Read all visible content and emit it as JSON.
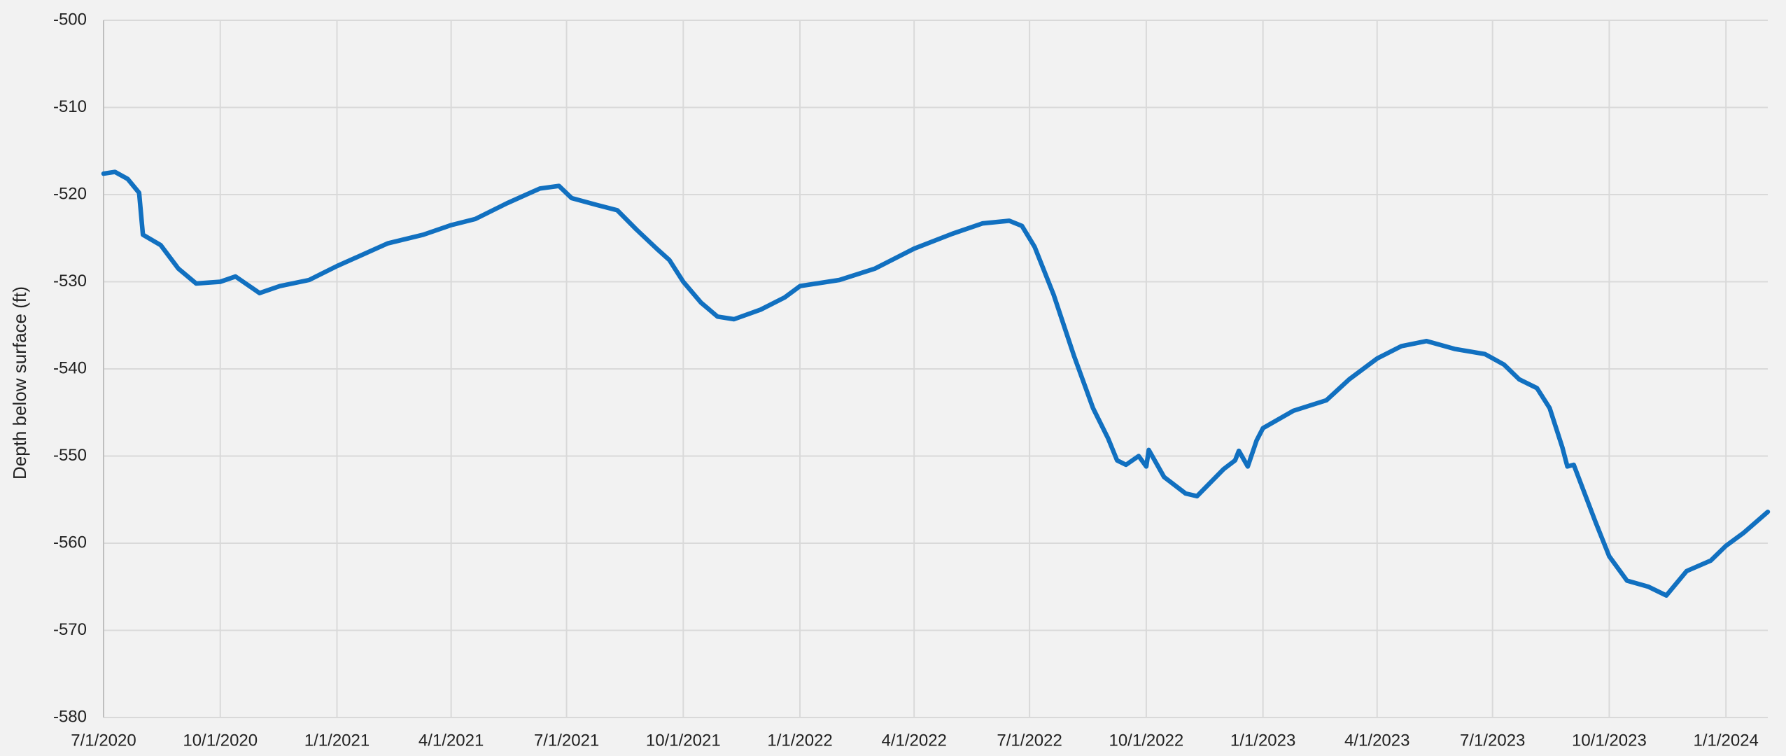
{
  "chart_data": {
    "type": "line",
    "y_label": "Depth below surface (ft)",
    "grid": true,
    "xlim": [
      "7/1/2020",
      "2/3/2024"
    ],
    "xticks": [
      "7/1/2020",
      "10/1/2020",
      "1/1/2021",
      "4/1/2021",
      "7/1/2021",
      "10/1/2021",
      "1/1/2022",
      "4/1/2022",
      "7/1/2022",
      "10/1/2022",
      "1/1/2023",
      "4/1/2023",
      "7/1/2023",
      "10/1/2023",
      "1/1/2024"
    ],
    "ylim": [
      -580,
      -500
    ],
    "yticks": [
      -500,
      -510,
      -520,
      -530,
      -540,
      -550,
      -560,
      -570,
      -580
    ],
    "x": [
      "7/1/2020",
      "7/10/2020",
      "7/20/2020",
      "7/29/2020",
      "8/1/2020",
      "8/15/2020",
      "8/29/2020",
      "9/12/2020",
      "10/1/2020",
      "10/13/2020",
      "11/1/2020",
      "11/17/2020",
      "12/10/2020",
      "1/1/2021",
      "2/10/2021",
      "3/10/2021",
      "4/1/2021",
      "4/20/2021",
      "5/15/2021",
      "6/10/2021",
      "6/25/2021",
      "7/5/2021",
      "7/25/2021",
      "8/10/2021",
      "8/25/2021",
      "9/10/2021",
      "9/20/2021",
      "10/1/2021",
      "10/15/2021",
      "10/28/2021",
      "11/10/2021",
      "12/1/2021",
      "12/20/2021",
      "1/1/2022",
      "2/1/2022",
      "3/1/2022",
      "4/1/2022",
      "5/1/2022",
      "5/25/2022",
      "6/15/2022",
      "6/25/2022",
      "7/5/2022",
      "7/20/2022",
      "8/5/2022",
      "8/20/2022",
      "9/1/2022",
      "9/8/2022",
      "9/15/2022",
      "9/25/2022",
      "10/1/2022",
      "10/3/2022",
      "10/15/2022",
      "11/1/2022",
      "11/10/2022",
      "12/1/2022",
      "12/10/2022",
      "12/13/2022",
      "12/20/2022",
      "12/27/2022",
      "1/1/2023",
      "1/25/2023",
      "2/20/2023",
      "3/10/2023",
      "4/1/2023",
      "4/20/2023",
      "5/10/2023",
      "6/1/2023",
      "6/25/2023",
      "7/10/2023",
      "7/22/2023",
      "8/5/2023",
      "8/15/2023",
      "8/25/2023",
      "8/29/2023",
      "9/3/2023",
      "9/20/2023",
      "10/1/2023",
      "10/15/2023",
      "11/1/2023",
      "11/15/2023",
      "12/1/2023",
      "12/20/2023",
      "1/1/2024",
      "1/15/2024",
      "2/3/2024"
    ],
    "series": [
      {
        "name": "Depth",
        "color": "#1170c0",
        "values": [
          -517.6,
          -517.4,
          -518.2,
          -519.8,
          -524.6,
          -525.8,
          -528.5,
          -530.2,
          -530,
          -529.4,
          -531.3,
          -530.5,
          -529.8,
          -528.2,
          -525.6,
          -524.6,
          -523.5,
          -522.8,
          -521,
          -519.3,
          -519,
          -520.4,
          -521.2,
          -521.8,
          -524,
          -526.2,
          -527.5,
          -530,
          -532.4,
          -534,
          -534.3,
          -533.2,
          -531.8,
          -530.5,
          -529.8,
          -528.5,
          -526.2,
          -524.5,
          -523.3,
          -523,
          -523.6,
          -526,
          -531.5,
          -538.5,
          -544.5,
          -548,
          -550.5,
          -551,
          -550,
          -551.2,
          -549.3,
          -552.4,
          -554.3,
          -554.6,
          -551.5,
          -550.5,
          -549.4,
          -551.2,
          -548.2,
          -546.8,
          -544.8,
          -543.6,
          -541.2,
          -538.8,
          -537.4,
          -536.8,
          -537.7,
          -538.3,
          -539.5,
          -541.2,
          -542.2,
          -544.5,
          -549,
          -551.2,
          -551,
          -557.5,
          -561.5,
          -564.3,
          -565,
          -566,
          -563.2,
          -562,
          -560.3,
          -558.8,
          -556.4
        ]
      }
    ]
  }
}
